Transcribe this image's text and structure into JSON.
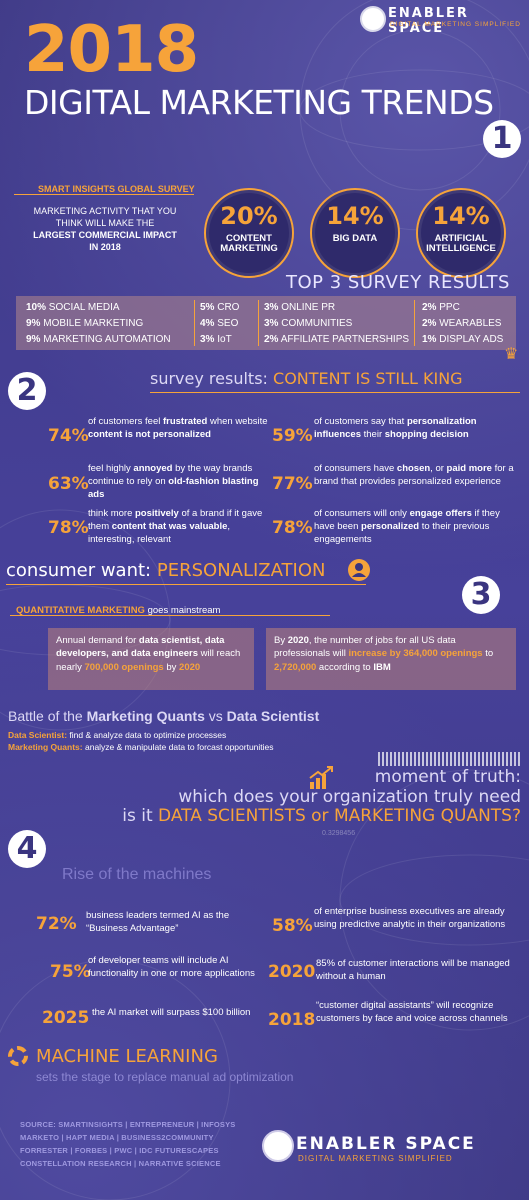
{
  "header": {
    "brand_name": "ENABLER SPACE",
    "brand_tagline": "DIGITAL MARKETING SIMPLIFIED",
    "year": "2018",
    "title": "DIGITAL MARKETING TRENDS"
  },
  "section1": {
    "number": "1",
    "heading": "SMART INSIGHTS GLOBAL SURVEY",
    "question_line1": "MARKETING ACTIVITY THAT YOU",
    "question_line2": "THINK WILL MAKE THE",
    "question_line3": "LARGEST COMMERCIAL IMPACT",
    "question_line4": "IN 2018",
    "top_stats": [
      {
        "pct": "20%",
        "label_line1": "CONTENT",
        "label_line2": "MARKETING"
      },
      {
        "pct": "14%",
        "label_line1": "BIG DATA",
        "label_line2": ""
      },
      {
        "pct": "14%",
        "label_line1": "ARTIFICIAL",
        "label_line2": "INTELLIGENCE"
      }
    ],
    "top3_label": "TOP 3 SURVEY RESULTS",
    "results": [
      [
        {
          "pct": "10%",
          "name": "SOCIAL MEDIA"
        },
        {
          "pct": "9%",
          "name": "MOBILE MARKETING"
        },
        {
          "pct": "9%",
          "name": "MARKETING AUTOMATION"
        }
      ],
      [
        {
          "pct": "5%",
          "name": "CRO"
        },
        {
          "pct": "4%",
          "name": "SEO"
        },
        {
          "pct": "3%",
          "name": "IoT"
        }
      ],
      [
        {
          "pct": "3%",
          "name": "ONLINE PR"
        },
        {
          "pct": "3%",
          "name": "COMMUNITIES"
        },
        {
          "pct": "2%",
          "name": "AFFILIATE PARTNERSHIPS"
        }
      ],
      [
        {
          "pct": "2%",
          "name": "PPC"
        },
        {
          "pct": "2%",
          "name": "WEARABLES"
        },
        {
          "pct": "1%",
          "name": "DISPLAY ADS"
        }
      ]
    ]
  },
  "section2": {
    "number": "2",
    "heading_prefix": "survey results:",
    "heading_emph": "CONTENT IS STILL KING",
    "stats_left": [
      {
        "pct": "74%",
        "t1": "of customers feel ",
        "b1": "frustrated",
        "t2": " when website ",
        "b2": "content is not personalized",
        "t3": ""
      },
      {
        "pct": "63%",
        "t1": "feel highly ",
        "b1": "annoyed",
        "t2": " by the way brands continue to rely on ",
        "b2": "old-fashion blasting ads",
        "t3": ""
      },
      {
        "pct": "78%",
        "t1": "think more ",
        "b1": "positively",
        "t2": " of a brand if it gave them ",
        "b2": "content that was valuable",
        "t3": ", interesting, relevant"
      }
    ],
    "stats_right": [
      {
        "pct": "59%",
        "t1": "of customers say that ",
        "b1": "personalization influences",
        "t2": " their ",
        "b2": "shopping decision",
        "t3": ""
      },
      {
        "pct": "77%",
        "t1": "of consumers have ",
        "b1": "chosen",
        "t2": ", or ",
        "b2": "paid more",
        "t3": " for a brand that provides personalized experience"
      },
      {
        "pct": "78%",
        "t1": "of consumers will only ",
        "b1": "engage offers",
        "t2": " if they have been ",
        "b2": "personalized",
        "t3": " to their previous engagements"
      }
    ],
    "want_prefix": "consumer want:",
    "want_emph": "PERSONALIZATION"
  },
  "section3": {
    "number": "3",
    "heading_emph": "QUANTITATIVE MARKETING",
    "heading_rest": " goes mainstream",
    "box_left": {
      "t1": "Annual demand for ",
      "b1": "data scientist, data developers, and data engineers",
      "t2": " will reach nearly ",
      "o1": "700,000 openings",
      "t3": " by ",
      "o2": "2020"
    },
    "box_right": {
      "t0": "By ",
      "b0": "2020",
      "t1": ", the number of jobs for all US data professionals will ",
      "o1": "increase",
      "t2": " ",
      "o2": "by 364,000 openings",
      "t3": " to ",
      "o3": "2,720,000",
      "t4": " according to ",
      "b1": "IBM"
    },
    "battle_prefix": "Battle of the ",
    "battle_b1": "Marketing Quants",
    "battle_mid": " vs ",
    "battle_b2": "Data Scientist",
    "ds_label": "Data Scientist:",
    "ds_text": " find & analyze data to optimize processes",
    "mq_label": "Marketing Quants:",
    "mq_text": " analyze & manipulate data to forcast opportunities",
    "mot_line1": "moment of truth:",
    "mot_line2": "which does your organization truly need",
    "mot_line3_prefix": "is it ",
    "mot_line3_emph": "DATA SCIENTISTS or MARKETING QUANTS?",
    "faint_number": "0.3298456"
  },
  "section4": {
    "number": "4",
    "heading": "Rise of the machines",
    "stats_left": [
      {
        "pct": "72%",
        "text": "business leaders termed AI as the “Business Advantage”"
      },
      {
        "pct": "75%",
        "text": "of developer teams will include AI functionality in one or more applications"
      },
      {
        "pct": "2025",
        "text": "the AI market will surpass $100 billion"
      }
    ],
    "stats_right": [
      {
        "pct": "58%",
        "text": "of enterprise business executives are already using predictive analytic in their organizations"
      },
      {
        "pct": "2020",
        "text": "85% of customer interactions will be managed without a human"
      },
      {
        "pct": "2018",
        "text": "“customer digital assistants” will recognize customers by face and voice across channels"
      }
    ],
    "ml_title": "MACHINE LEARNING",
    "ml_sub": "sets the stage to replace manual ad optimization"
  },
  "footer": {
    "source_lines": [
      "SOURCE: SMARTINSIGHTS | ENTREPRENEUR | INFOSYS",
      "MARKETO | HAPT MEDIA | BUSINESS2COMMUNITY",
      "FORRESTER | FORBES | PWC | IDC FUTURESCAPES",
      "CONSTELLATION RESEARCH | NARRATIVE SCIENCE"
    ],
    "brand_name": "ENABLER SPACE",
    "brand_tagline": "DIGITAL MARKETING SIMPLIFIED"
  },
  "colors": {
    "background": "#433d8a",
    "accent": "#f6a33a",
    "box": "#b2878c"
  }
}
